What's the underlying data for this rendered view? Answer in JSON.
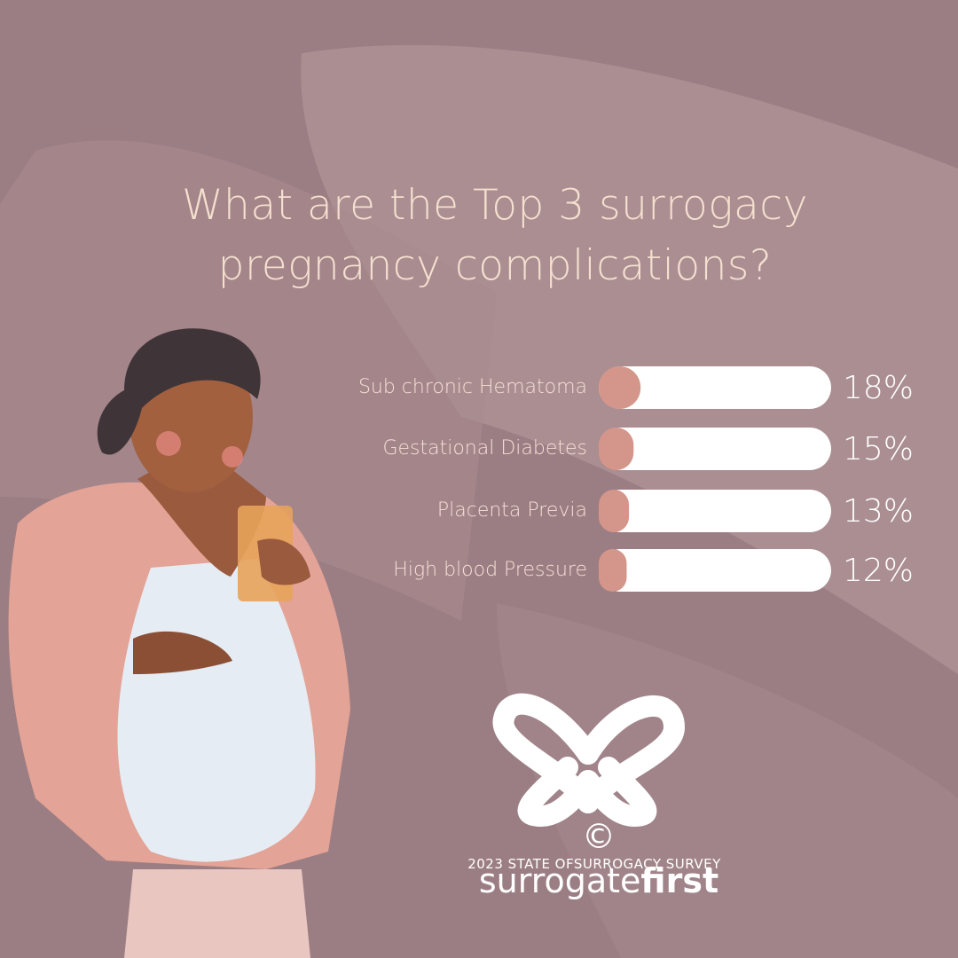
{
  "chart_data": {
    "type": "bar",
    "orientation": "horizontal",
    "title": "What are the Top 3 surrogacy pregnancy complications?",
    "categories": [
      "Sub chronic Hematoma",
      "Gestational Diabetes",
      "Placenta Previa",
      "High blood Pressure"
    ],
    "values": [
      18,
      15,
      13,
      12
    ],
    "value_labels": [
      "18%",
      "15%",
      "13%",
      "12%"
    ],
    "xlim": [
      0,
      100
    ],
    "color": "#d4968a"
  },
  "logo": {
    "symbol": "©",
    "name_light": "surrogate",
    "name_bold": "first"
  },
  "footer": "2023 STATE OFSURROGACY SURVEY"
}
